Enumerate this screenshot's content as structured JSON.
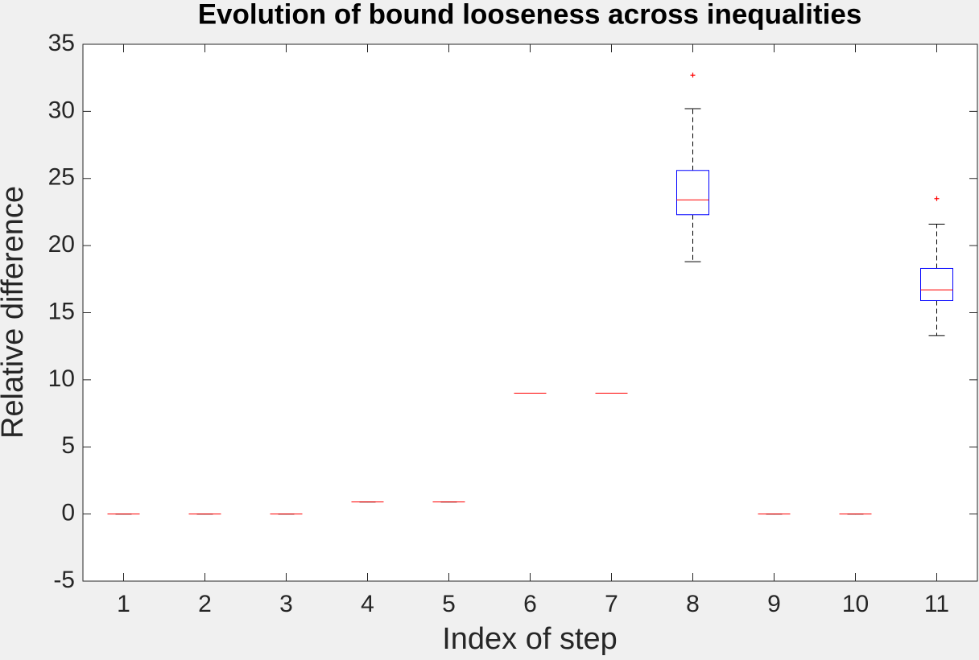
{
  "chart_data": {
    "type": "box",
    "title": "Evolution of bound looseness across inequalities",
    "x_label": "Index of step",
    "y_label": "Relative difference",
    "x": [
      1,
      2,
      3,
      4,
      5,
      6,
      7,
      8,
      9,
      10,
      11
    ],
    "min": [
      0,
      0,
      0,
      0.9,
      0.9,
      9.0,
      9.0,
      18.8,
      0,
      0,
      13.3
    ],
    "q1": [
      0,
      0,
      0,
      0.9,
      0.9,
      9.0,
      9.0,
      22.3,
      0,
      0,
      15.9
    ],
    "median": [
      0,
      0,
      0,
      0.9,
      0.9,
      9.0,
      9.0,
      23.4,
      0,
      0,
      16.7
    ],
    "q3": [
      0,
      0,
      0,
      0.9,
      0.9,
      9.0,
      9.0,
      25.6,
      0,
      0,
      18.3
    ],
    "max": [
      0,
      0,
      0,
      0.9,
      0.9,
      9.0,
      9.0,
      30.2,
      0,
      0,
      21.6
    ],
    "outliers": [
      [],
      [],
      [],
      [],
      [],
      [],
      [],
      [
        32.7
      ],
      [],
      [],
      [
        23.5
      ]
    ],
    "box_color": "#0000ff",
    "median_color": "#ff0000",
    "whisker_color": "#000000",
    "outlier_color": "#ff0000",
    "xlim": [
      0.5,
      11.5
    ],
    "xticks": [
      1,
      2,
      3,
      4,
      5,
      6,
      7,
      8,
      9,
      10,
      11
    ],
    "ylim": [
      -5,
      35
    ],
    "yticks": [
      -5,
      0,
      5,
      10,
      15,
      20,
      25,
      30,
      35
    ],
    "grid": false
  }
}
